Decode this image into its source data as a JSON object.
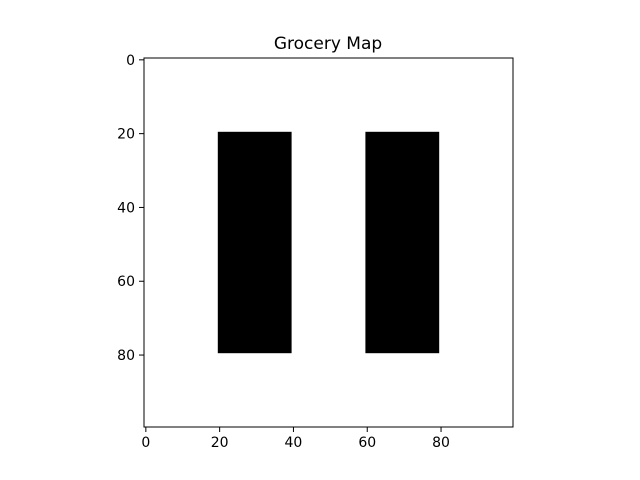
{
  "chart_data": {
    "type": "heatmap",
    "title": "Grocery Map",
    "xlabel": "",
    "ylabel": "",
    "xlim": [
      -0.5,
      99.5
    ],
    "ylim": [
      99.5,
      -0.5
    ],
    "y_axis_inverted": true,
    "grid": false,
    "x_ticks": [
      0,
      20,
      40,
      60,
      80
    ],
    "y_ticks": [
      0,
      20,
      40,
      60,
      80
    ],
    "colormap": {
      "0": "#ffffff",
      "1": "#000000"
    },
    "grid_size": [
      100,
      100
    ],
    "blocks": [
      {
        "x_start": 20,
        "x_end": 40,
        "y_start": 20,
        "y_end": 80,
        "value": 1
      },
      {
        "x_start": 60,
        "x_end": 80,
        "y_start": 20,
        "y_end": 80,
        "value": 1
      }
    ]
  }
}
